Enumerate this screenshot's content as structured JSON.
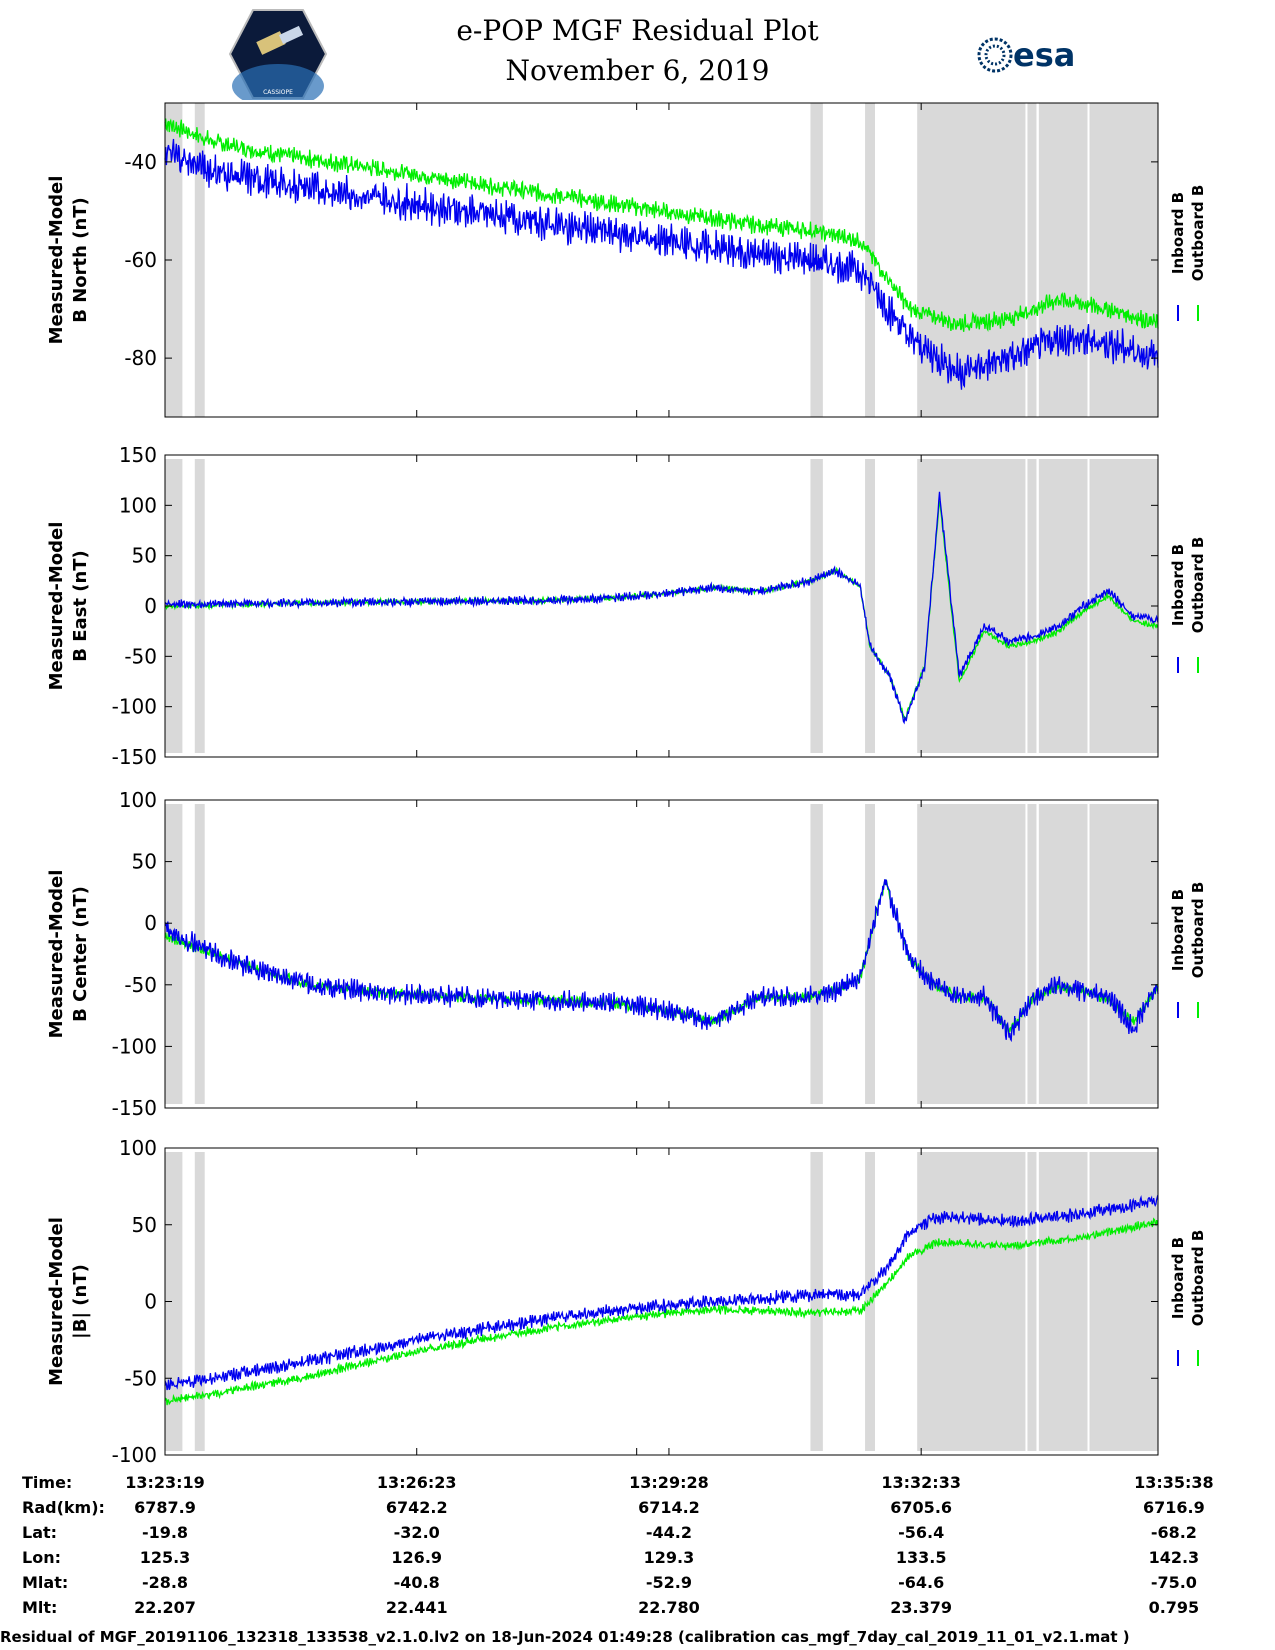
{
  "header": {
    "title": "e-POP MGF Residual Plot",
    "date": "November 6, 2019",
    "left_logo_text": "CASSIOPE",
    "right_logo_text": "esa"
  },
  "colors": {
    "inboard": "#0000ee",
    "outboard": "#00ee00",
    "shade": "#d9d9d9"
  },
  "chart_data": [
    {
      "type": "line",
      "ylabel_line1": "Measured-Model",
      "ylabel_line2": "B North (nT)",
      "ylim": [
        -92,
        -28
      ],
      "yticks": [
        -80,
        -60,
        -40
      ],
      "ytick_labels": [
        "-80",
        "-60",
        "-40"
      ],
      "legend": [
        "Inboard B",
        "Outboard B"
      ],
      "x_minutes": [
        0,
        1,
        2,
        3,
        4,
        5,
        6,
        7,
        8,
        9,
        10,
        11,
        12,
        13,
        14,
        15,
        16,
        17,
        18,
        19,
        20
      ],
      "series": [
        {
          "name": "Inboard B",
          "noise": 5,
          "values": [
            -38,
            -42,
            -44,
            -45.5,
            -47,
            -48.5,
            -50,
            -51.5,
            -53,
            -54.5,
            -56,
            -57.5,
            -59,
            -60,
            -62,
            -76,
            -83,
            -80,
            -76,
            -77,
            -80
          ]
        },
        {
          "name": "Outboard B",
          "noise": 2.5,
          "values": [
            -32,
            -36,
            -38,
            -39.5,
            -41,
            -42.5,
            -44,
            -45.5,
            -47,
            -48.5,
            -50,
            -51.5,
            -53,
            -54,
            -56,
            -70,
            -73,
            -72,
            -68,
            -70,
            -73
          ]
        }
      ]
    },
    {
      "type": "line",
      "ylabel_line1": "Measured-Model",
      "ylabel_line2": "B East (nT)",
      "ylim": [
        -150,
        150
      ],
      "yticks": [
        -150,
        -100,
        -50,
        0,
        50,
        100,
        150
      ],
      "ytick_labels": [
        "-150",
        "-100",
        "-50",
        "0",
        "50",
        "100",
        "150"
      ],
      "legend": [
        "Inboard B",
        "Outboard B"
      ],
      "x_minutes": [
        0,
        1,
        2,
        3,
        4,
        5,
        6,
        7,
        8,
        9,
        10,
        11,
        12,
        13,
        13.5,
        14,
        14.2,
        14.6,
        14.9,
        15.3,
        15.6,
        16,
        16.5,
        17,
        17.5,
        18,
        18.5,
        19,
        19.5,
        20
      ],
      "series": [
        {
          "name": "Inboard B",
          "noise": 6,
          "values": [
            2,
            2,
            3,
            3,
            4,
            4,
            5,
            5,
            6,
            8,
            12,
            18,
            15,
            25,
            35,
            20,
            -40,
            -70,
            -115,
            -60,
            110,
            -70,
            -20,
            -35,
            -30,
            -20,
            0,
            15,
            -10,
            -15
          ]
        },
        {
          "name": "Outboard B",
          "noise": 4,
          "values": [
            0,
            1,
            2,
            3,
            4,
            4,
            5,
            5,
            6,
            8,
            12,
            18,
            15,
            25,
            35,
            20,
            -40,
            -70,
            -112,
            -60,
            105,
            -75,
            -25,
            -40,
            -35,
            -25,
            -5,
            10,
            -15,
            -20
          ]
        }
      ]
    },
    {
      "type": "line",
      "ylabel_line1": "Measured-Model",
      "ylabel_line2": "B Center (nT)",
      "ylim": [
        -150,
        100
      ],
      "yticks": [
        -150,
        -100,
        -50,
        0,
        50,
        100
      ],
      "ytick_labels": [
        "-150",
        "-100",
        "-50",
        "0",
        "50",
        "100"
      ],
      "legend": [
        "Inboard B",
        "Outboard B"
      ],
      "x_minutes": [
        0,
        1,
        2,
        3,
        4,
        5,
        6,
        7,
        8,
        9,
        10,
        11,
        12,
        13,
        13.5,
        14,
        14.5,
        15,
        15.5,
        16,
        16.5,
        17,
        17.5,
        18,
        18.5,
        19,
        19.5,
        20
      ],
      "series": [
        {
          "name": "Inboard B",
          "noise": 12,
          "values": [
            -5,
            -25,
            -40,
            -50,
            -55,
            -58,
            -60,
            -62,
            -63,
            -65,
            -70,
            -80,
            -60,
            -60,
            -55,
            -45,
            35,
            -30,
            -50,
            -60,
            -60,
            -90,
            -60,
            -50,
            -55,
            -60,
            -85,
            -50
          ]
        },
        {
          "name": "Outboard B",
          "noise": 6,
          "values": [
            -10,
            -25,
            -40,
            -50,
            -55,
            -58,
            -60,
            -62,
            -63,
            -65,
            -70,
            -80,
            -60,
            -60,
            -55,
            -45,
            35,
            -30,
            -50,
            -60,
            -60,
            -88,
            -60,
            -52,
            -55,
            -62,
            -80,
            -52
          ]
        }
      ]
    },
    {
      "type": "line",
      "ylabel_line1": "Measured-Model",
      "ylabel_line2": "|B| (nT)",
      "ylim": [
        -100,
        100
      ],
      "yticks": [
        -100,
        -50,
        0,
        50,
        100
      ],
      "ytick_labels": [
        "-100",
        "-50",
        "0",
        "50",
        "100"
      ],
      "legend": [
        "Inboard B",
        "Outboard B"
      ],
      "x_minutes": [
        0,
        1,
        2,
        3,
        4,
        5,
        6,
        7,
        8,
        9,
        10,
        11,
        12,
        13,
        14,
        14.5,
        15,
        15.5,
        16,
        17,
        18,
        19,
        20
      ],
      "series": [
        {
          "name": "Inboard B",
          "noise": 6,
          "values": [
            -55,
            -50,
            -44,
            -38,
            -32,
            -25,
            -20,
            -15,
            -10,
            -6,
            -3,
            0,
            2,
            4,
            5,
            20,
            45,
            55,
            55,
            52,
            55,
            60,
            66
          ]
        },
        {
          "name": "Outboard B",
          "noise": 4,
          "values": [
            -65,
            -60,
            -54,
            -48,
            -40,
            -33,
            -27,
            -21,
            -16,
            -12,
            -8,
            -5,
            -6,
            -7,
            -6,
            10,
            30,
            38,
            38,
            36,
            40,
            45,
            52
          ]
        }
      ]
    }
  ],
  "x_axis": {
    "range_minutes": [
      0,
      20
    ],
    "tick_minutes": [
      0,
      5.07,
      10.15,
      15.23,
      20.32
    ],
    "minor_tick_minutes": [
      9.5
    ]
  },
  "shaded_intervals_minutes": [
    [
      -0.05,
      0.35
    ],
    [
      0.6,
      0.8
    ],
    [
      13.0,
      13.25
    ],
    [
      14.1,
      14.3
    ],
    [
      15.15,
      17.55
    ],
    [
      17.5,
      17.55
    ],
    [
      17.6,
      20.0
    ],
    [
      18.6,
      18.65
    ]
  ],
  "ephemeris": {
    "rows": [
      {
        "label": "Time:",
        "values": [
          "13:23:19",
          "13:26:23",
          "13:29:28",
          "13:32:33",
          "13:35:38"
        ]
      },
      {
        "label": "Rad(km):",
        "values": [
          "6787.9",
          "6742.2",
          "6714.2",
          "6705.6",
          "6716.9"
        ]
      },
      {
        "label": "Lat:",
        "values": [
          "-19.8",
          "-32.0",
          "-44.2",
          "-56.4",
          "-68.2"
        ]
      },
      {
        "label": "Lon:",
        "values": [
          "125.3",
          "126.9",
          "129.3",
          "133.5",
          "142.3"
        ]
      },
      {
        "label": "Mlat:",
        "values": [
          "-28.8",
          "-40.8",
          "-52.9",
          "-64.6",
          "-75.0"
        ]
      },
      {
        "label": "Mlt:",
        "values": [
          "22.207",
          "22.441",
          "22.780",
          "23.379",
          "0.795"
        ]
      }
    ]
  },
  "footer": "Residual of MGF_20191106_132318_133538_v2.1.0.lv2 on 18-Jun-2024 01:49:28 (calibration cas_mgf_7day_cal_2019_11_01_v2.1.mat )"
}
